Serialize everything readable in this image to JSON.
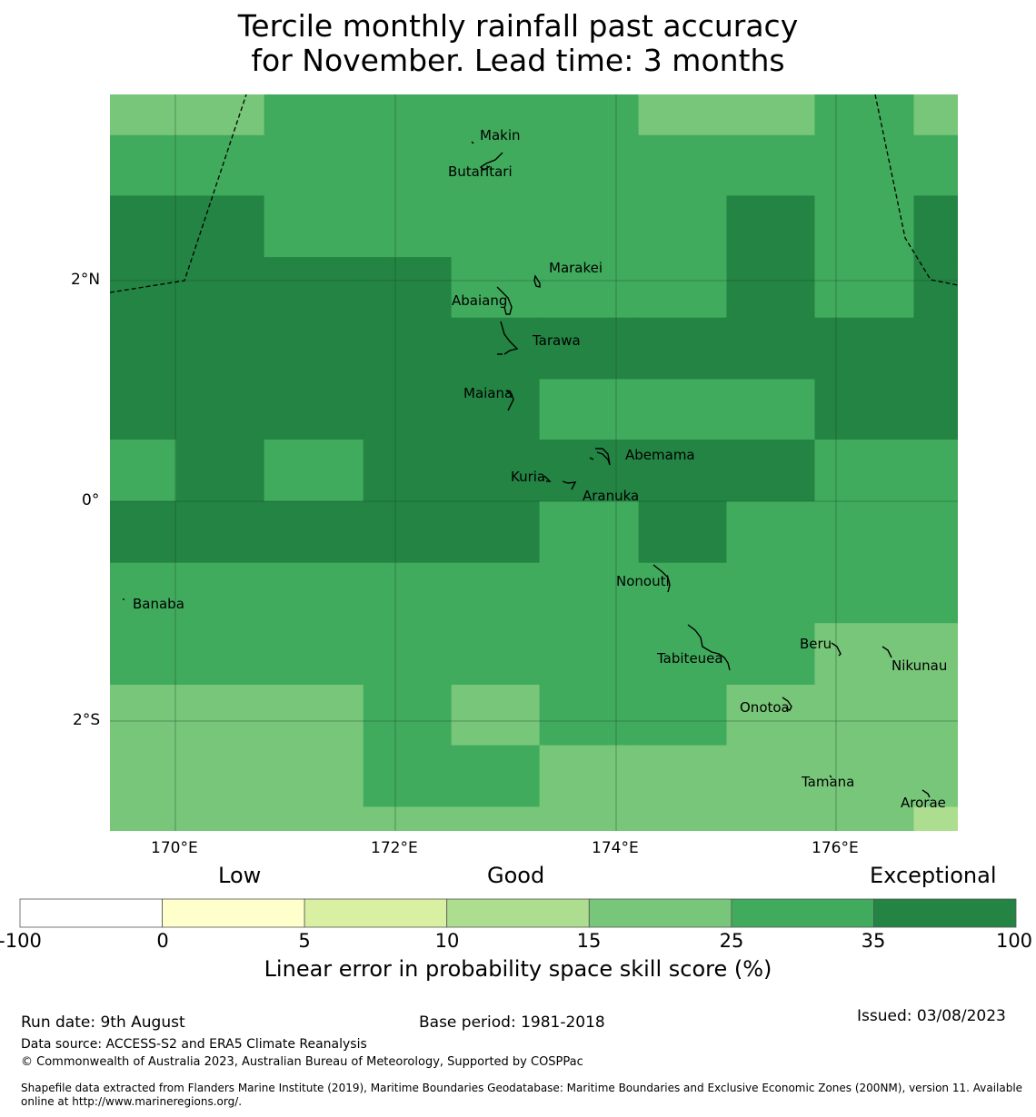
{
  "title": {
    "line1": "Tercile monthly rainfall past accuracy",
    "line2": "for November. Lead time: 3 months"
  },
  "map": {
    "lon_range": [
      169.4,
      177.1
    ],
    "lat_range": [
      -3.0,
      3.7
    ],
    "x_ticks": [
      "170°E",
      "172°E",
      "174°E",
      "176°E"
    ],
    "y_ticks": [
      "2°N",
      "0°",
      "2°S"
    ],
    "gridlines": true,
    "eez_boundary": "dashed",
    "places": [
      {
        "name": "Makin",
        "lon": 172.99,
        "lat": 3.38
      },
      {
        "name": "Butaritari",
        "lon": 172.79,
        "lat": 3.07
      },
      {
        "name": "Marakei",
        "lon": 173.28,
        "lat": 2.01
      },
      {
        "name": "Abaiang",
        "lon": 172.95,
        "lat": 1.84
      },
      {
        "name": "Tarawa",
        "lon": 173.01,
        "lat": 1.42
      },
      {
        "name": "Maiana",
        "lon": 173.02,
        "lat": 0.93
      },
      {
        "name": "Abemama",
        "lon": 173.86,
        "lat": 0.4
      },
      {
        "name": "Kuria",
        "lon": 173.42,
        "lat": 0.22
      },
      {
        "name": "Aranuka",
        "lon": 173.6,
        "lat": 0.17
      },
      {
        "name": "Nonouti",
        "lon": 174.41,
        "lat": -0.65
      },
      {
        "name": "Banaba",
        "lon": 169.54,
        "lat": -0.87
      },
      {
        "name": "Tabiteuea",
        "lon": 174.9,
        "lat": -1.4
      },
      {
        "name": "Beru",
        "lon": 176.0,
        "lat": -1.33
      },
      {
        "name": "Nikunau",
        "lon": 176.45,
        "lat": -1.37
      },
      {
        "name": "Onotoa",
        "lon": 175.56,
        "lat": -1.8
      },
      {
        "name": "Tamana",
        "lon": 175.98,
        "lat": -2.5
      },
      {
        "name": "Arorae",
        "lon": 176.82,
        "lat": -2.64
      }
    ]
  },
  "skill_levels": [
    {
      "min": "-100",
      "max": "0",
      "color": "#ffffff"
    },
    {
      "min": "0",
      "max": "5",
      "color": "#ffffcc"
    },
    {
      "min": "5",
      "max": "10",
      "color": "#d9f0a3"
    },
    {
      "min": "10",
      "max": "15",
      "color": "#addd8e"
    },
    {
      "min": "15",
      "max": "25",
      "color": "#78c679"
    },
    {
      "min": "25",
      "max": "35",
      "color": "#41ab5d"
    },
    {
      "min": "35",
      "max": "100",
      "color": "#238443"
    }
  ],
  "grid_cells": {
    "lon_edges": [
      169.4,
      170.0,
      170.8,
      171.7,
      172.5,
      173.3,
      174.2,
      175.0,
      175.8,
      176.7,
      177.1
    ],
    "lat_edges": [
      3.7,
      3.33,
      2.78,
      2.22,
      1.67,
      1.11,
      0.56,
      0.0,
      -0.56,
      -1.11,
      -1.67,
      -2.22,
      -2.78,
      -3.0
    ],
    "levels": [
      [
        4,
        4,
        5,
        5,
        5,
        5,
        4,
        4,
        5,
        4
      ],
      [
        5,
        5,
        5,
        5,
        5,
        5,
        5,
        5,
        5,
        5
      ],
      [
        6,
        6,
        5,
        5,
        5,
        5,
        5,
        6,
        5,
        6
      ],
      [
        6,
        6,
        6,
        6,
        5,
        5,
        5,
        6,
        5,
        6
      ],
      [
        6,
        6,
        6,
        6,
        6,
        6,
        6,
        6,
        6,
        6
      ],
      [
        6,
        6,
        6,
        6,
        6,
        5,
        5,
        5,
        6,
        6
      ],
      [
        5,
        6,
        5,
        6,
        6,
        6,
        6,
        6,
        5,
        5
      ],
      [
        6,
        6,
        6,
        6,
        6,
        5,
        6,
        5,
        5,
        5
      ],
      [
        5,
        5,
        5,
        5,
        5,
        5,
        5,
        5,
        5,
        5
      ],
      [
        5,
        5,
        5,
        5,
        5,
        5,
        5,
        5,
        4,
        4
      ],
      [
        4,
        4,
        4,
        5,
        4,
        5,
        5,
        4,
        4,
        4
      ],
      [
        4,
        4,
        4,
        5,
        5,
        4,
        4,
        4,
        4,
        4
      ],
      [
        4,
        4,
        4,
        4,
        4,
        4,
        4,
        4,
        4,
        3
      ]
    ]
  },
  "colorbar": {
    "words": {
      "low": "Low",
      "good": "Good",
      "exceptional": "Exceptional"
    },
    "tick_labels": [
      "-100",
      "0",
      "5",
      "10",
      "15",
      "25",
      "35",
      "100"
    ],
    "caption": "Linear error in probability space skill score (%)"
  },
  "footer": {
    "run_date": "Run date: 9th August",
    "base_period": "Base period: 1981-2018",
    "issued": "Issued: 03/08/2023",
    "data_source": "Data source: ACCESS-S2 and ERA5 Climate Reanalysis",
    "copyright": "© Commonwealth of Australia 2023, Australian Bureau of Meteorology, Supported by COSPPac",
    "shapefile_line1": "Shapefile data extracted from Flanders Marine Institute (2019), Maritime Boundaries Geodatabase: Maritime Boundaries and Exclusive Economic Zones (200NM), version 11. Available",
    "shapefile_line2": "online at http://www.marineregions.org/."
  }
}
